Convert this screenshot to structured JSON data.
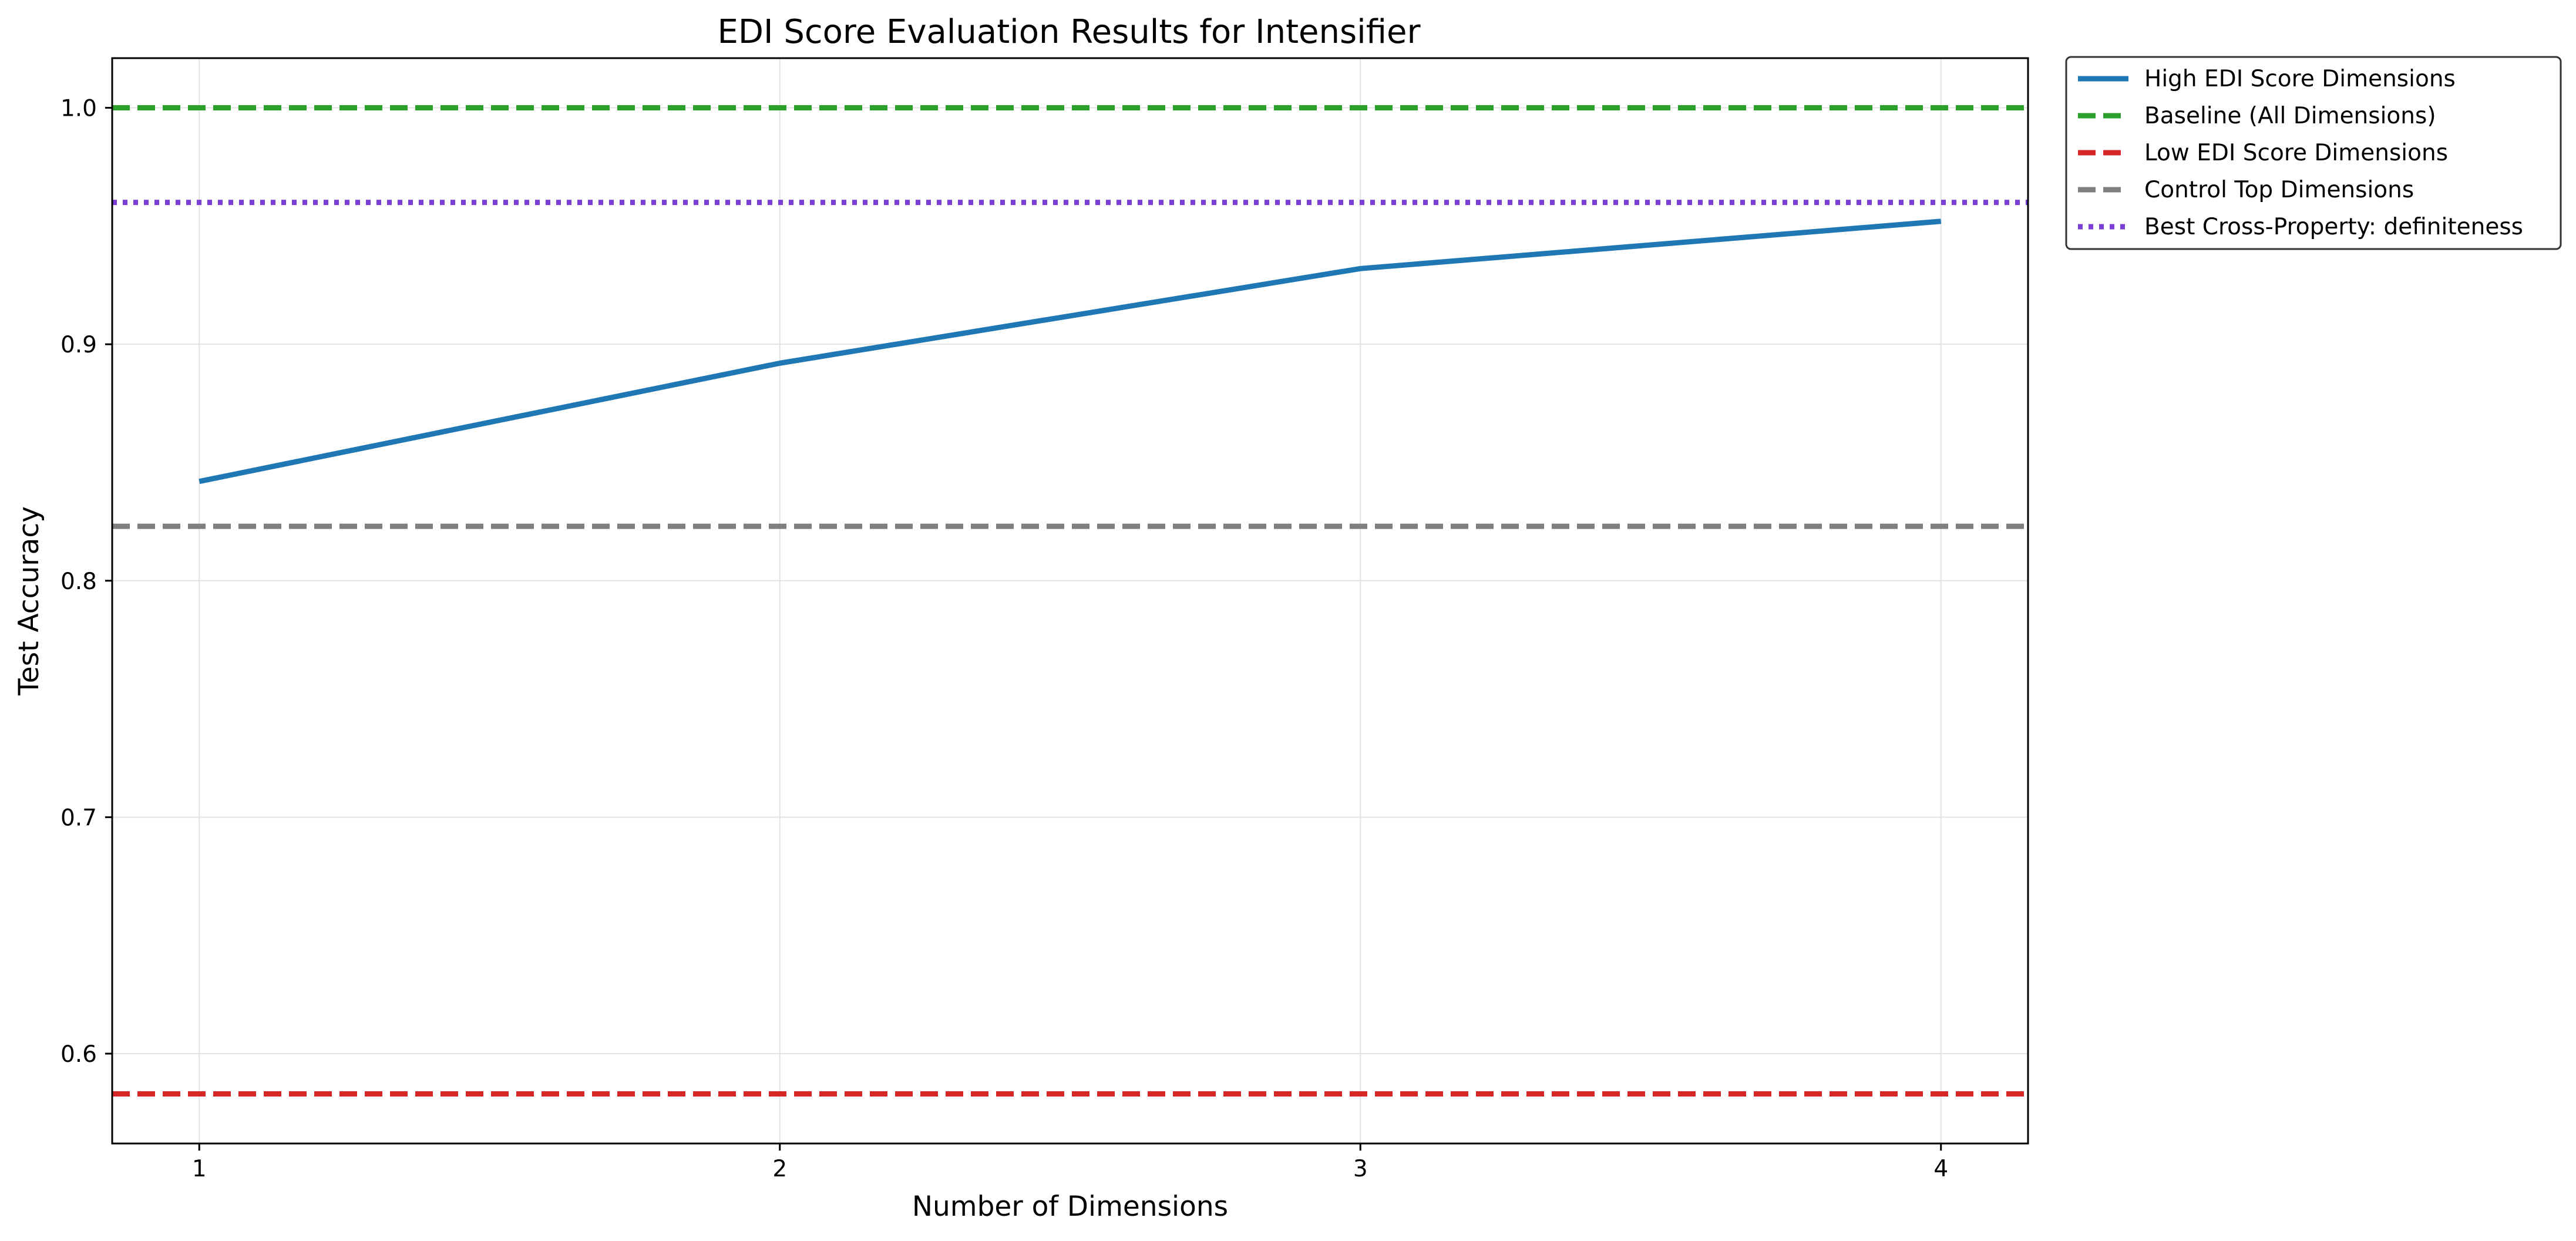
{
  "chart_data": {
    "type": "line",
    "title": "EDI Score Evaluation Results for Intensifier",
    "xlabel": "Number of Dimensions",
    "ylabel": "Test Accuracy",
    "xlim": [
      0.85,
      4.15
    ],
    "ylim": [
      0.562,
      1.021
    ],
    "xticks": [
      1,
      2,
      3,
      4
    ],
    "xtick_labels": [
      "1",
      "2",
      "3",
      "4"
    ],
    "yticks": [
      0.6,
      0.7,
      0.8,
      0.9,
      1.0
    ],
    "ytick_labels": [
      "0.6",
      "0.7",
      "0.8",
      "0.9",
      "1.0"
    ],
    "grid": true,
    "legend_position": "outside-top-right",
    "series": [
      {
        "name": "High EDI Score Dimensions",
        "kind": "line",
        "style": "solid",
        "color": "#1f77b4",
        "x": [
          1,
          2,
          3,
          4
        ],
        "values": [
          0.842,
          0.892,
          0.932,
          0.952
        ]
      }
    ],
    "reference_lines": [
      {
        "name": "Baseline (All Dimensions)",
        "y": 1.0,
        "style": "dashed",
        "color": "#2ca02c"
      },
      {
        "name": "Low EDI Score Dimensions",
        "y": 0.583,
        "style": "dashed",
        "color": "#d62728"
      },
      {
        "name": "Control Top Dimensions",
        "y": 0.823,
        "style": "dashed",
        "color": "#7f7f7f"
      },
      {
        "name": "Best Cross-Property: definiteness",
        "y": 0.96,
        "style": "dotted",
        "color": "#7b3fd6"
      }
    ],
    "legend": [
      {
        "label": "High EDI Score Dimensions",
        "style": "solid",
        "color": "#1f77b4"
      },
      {
        "label": "Baseline (All Dimensions)",
        "style": "dashed",
        "color": "#2ca02c"
      },
      {
        "label": "Low EDI Score Dimensions",
        "style": "dashed",
        "color": "#d62728"
      },
      {
        "label": "Control Top Dimensions",
        "style": "dashed",
        "color": "#7f7f7f"
      },
      {
        "label": "Best Cross-Property: definiteness",
        "style": "dotted",
        "color": "#7b3fd6"
      }
    ]
  }
}
